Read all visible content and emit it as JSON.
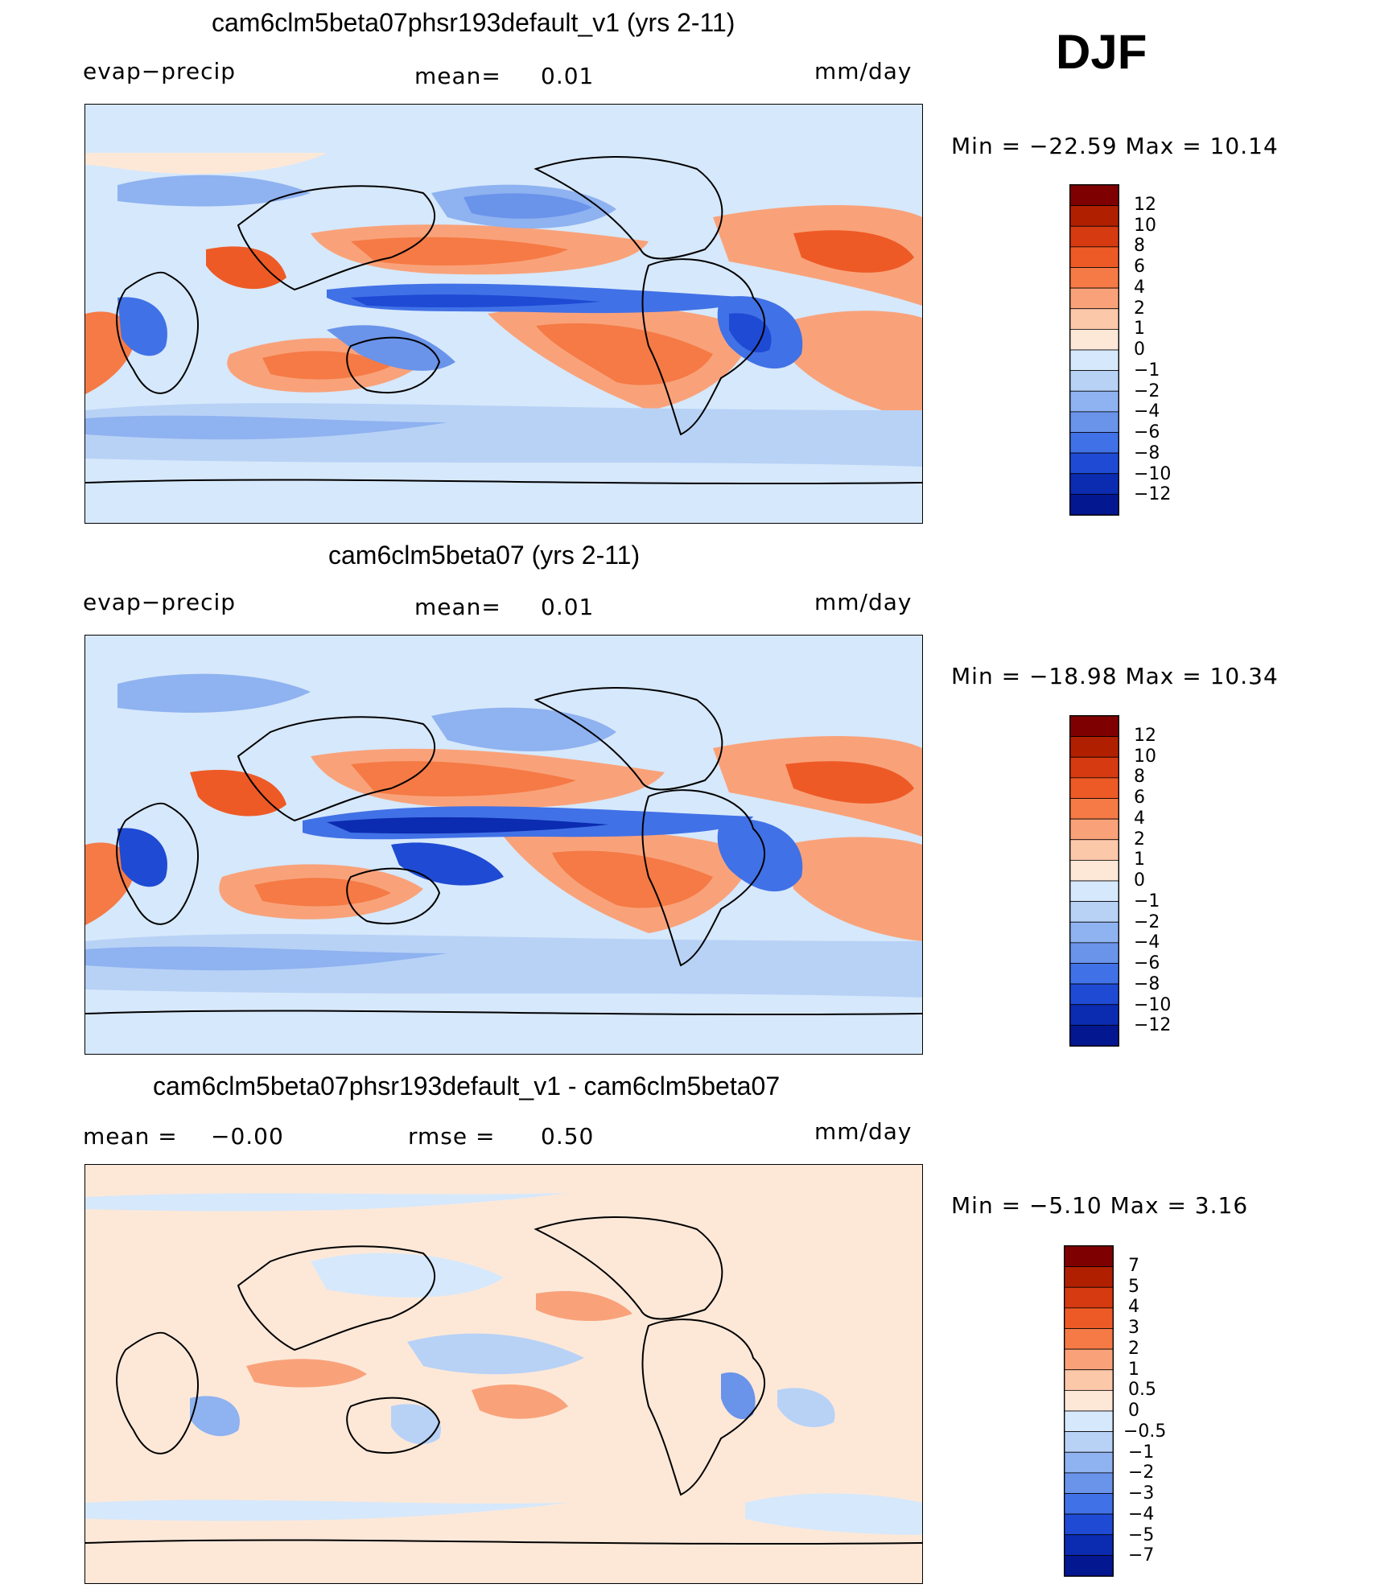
{
  "season": "DJF",
  "panels": [
    {
      "title": "cam6clm5beta07phsr193default_v1 (yrs 2-11)",
      "left_label": "evap−precip",
      "center_label": "mean=",
      "center_value": "0.01",
      "units": "mm/day",
      "minmax": "Min  =  −22.59  Max  =   10.14",
      "colorbar_ticks": [
        "12",
        "10",
        "8",
        "6",
        "4",
        "2",
        "1",
        "0",
        "−1",
        "−2",
        "−4",
        "−6",
        "−8",
        "−10",
        "−12"
      ],
      "colorbar_colors": [
        "#7f0000",
        "#b02000",
        "#d63a10",
        "#ee5a26",
        "#f57a45",
        "#f9a27a",
        "#fcc8aa",
        "#fde8d8",
        "#d6e8fb",
        "#b8d2f6",
        "#8fb2f0",
        "#6a93ea",
        "#4171e6",
        "#1f4ad4",
        "#0b2bb0",
        "#031790"
      ]
    },
    {
      "title": "cam6clm5beta07 (yrs 2-11)",
      "left_label": "evap−precip",
      "center_label": "mean=",
      "center_value": "0.01",
      "units": "mm/day",
      "minmax": "Min  =  −18.98  Max  =   10.34",
      "colorbar_ticks": [
        "12",
        "10",
        "8",
        "6",
        "4",
        "2",
        "1",
        "0",
        "−1",
        "−2",
        "−4",
        "−6",
        "−8",
        "−10",
        "−12"
      ],
      "colorbar_colors": [
        "#7f0000",
        "#b02000",
        "#d63a10",
        "#ee5a26",
        "#f57a45",
        "#f9a27a",
        "#fcc8aa",
        "#fde8d8",
        "#d6e8fb",
        "#b8d2f6",
        "#8fb2f0",
        "#6a93ea",
        "#4171e6",
        "#1f4ad4",
        "#0b2bb0",
        "#031790"
      ]
    },
    {
      "title": "cam6clm5beta07phsr193default_v1 - cam6clm5beta07",
      "left_label": "mean  =",
      "left_value": "−0.00",
      "center_label": "rmse  =",
      "center_value": "0.50",
      "units": "mm/day",
      "minmax": "Min  =    −5.10  Max  =    3.16",
      "colorbar_ticks": [
        "7",
        "5",
        "4",
        "3",
        "2",
        "1",
        "0.5",
        "0",
        "−0.5",
        "−1",
        "−2",
        "−3",
        "−4",
        "−5",
        "−7"
      ],
      "colorbar_colors": [
        "#7f0000",
        "#b02000",
        "#d63a10",
        "#ee5a26",
        "#f57a45",
        "#f9a27a",
        "#fcc8aa",
        "#fde8d8",
        "#d6e8fb",
        "#b8d2f6",
        "#8fb2f0",
        "#6a93ea",
        "#4171e6",
        "#1f4ad4",
        "#0b2bb0",
        "#031790"
      ]
    }
  ]
}
